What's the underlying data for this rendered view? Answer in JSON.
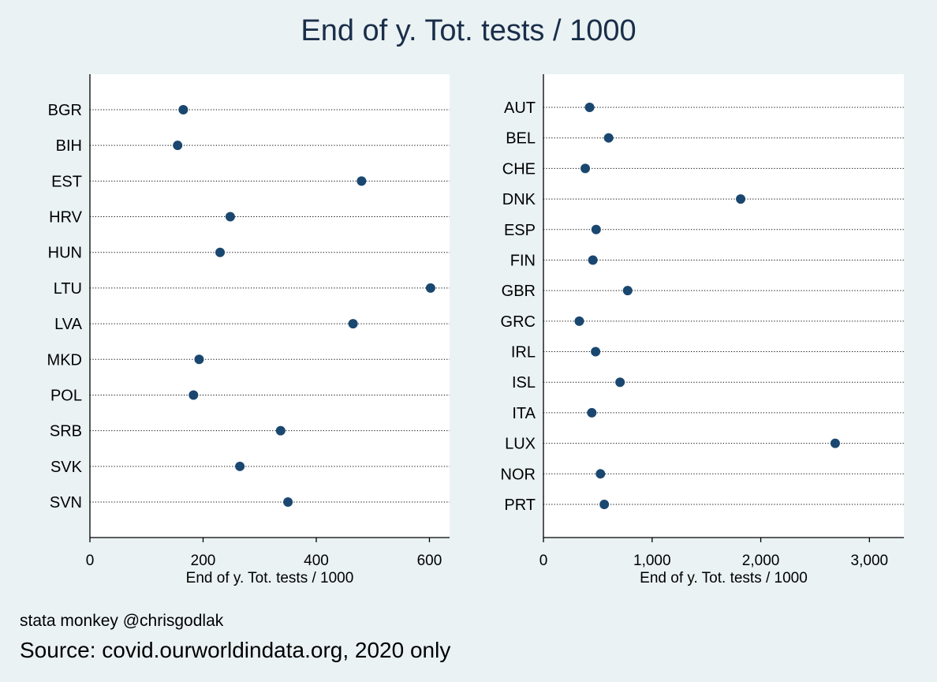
{
  "title": "End of y. Tot. tests / 1000",
  "footer": {
    "credit": "stata monkey @chrisgodlak",
    "source": "Source: covid.ourworldindata.org, 2020 only"
  },
  "colors": {
    "background": "#eaf2f3",
    "plot_area": "#ffffff",
    "marker": "#1a476f",
    "text": "#1a2e4a"
  },
  "chart_data": [
    {
      "type": "scatter",
      "title": "",
      "xlabel": "End of y. Tot. tests / 1000",
      "ylabel": "",
      "xlim": [
        0,
        630
      ],
      "xticks": [
        0,
        200,
        400,
        600
      ],
      "xtick_labels": [
        "0",
        "200",
        "400",
        "600"
      ],
      "grid": "dotted horizontal",
      "categories": [
        "BGR",
        "BIH",
        "EST",
        "HRV",
        "HUN",
        "LTU",
        "LVA",
        "MKD",
        "POL",
        "SRB",
        "SVK",
        "SVN"
      ],
      "values": [
        165,
        155,
        480,
        248,
        230,
        602,
        465,
        193,
        183,
        337,
        265,
        350
      ]
    },
    {
      "type": "scatter",
      "title": "",
      "xlabel": "End of y. Tot. tests / 1000",
      "ylabel": "",
      "xlim": [
        0,
        3150
      ],
      "xticks": [
        0,
        1000,
        2000,
        3000
      ],
      "xtick_labels": [
        "0",
        "1,000",
        "2,000",
        "3,000"
      ],
      "grid": "dotted horizontal",
      "categories": [
        "AUT",
        "BEL",
        "CHE",
        "DNK",
        "ESP",
        "FIN",
        "GBR",
        "GRC",
        "IRL",
        "ISL",
        "ITA",
        "LUX",
        "NOR",
        "PRT"
      ],
      "values": [
        425,
        600,
        385,
        1815,
        485,
        455,
        775,
        330,
        480,
        705,
        445,
        2685,
        525,
        560
      ]
    }
  ]
}
